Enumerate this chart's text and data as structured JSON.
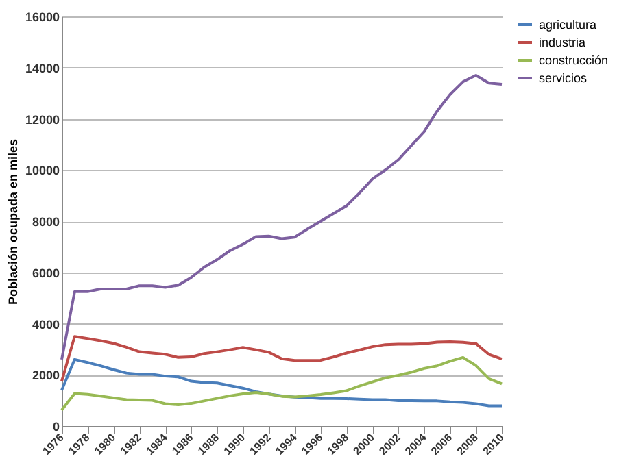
{
  "chart_data": {
    "type": "line",
    "ylabel": "Población ocupada  en miles",
    "x": [
      1976,
      1977,
      1978,
      1979,
      1980,
      1981,
      1982,
      1983,
      1984,
      1985,
      1986,
      1987,
      1988,
      1989,
      1990,
      1991,
      1992,
      1993,
      1994,
      1995,
      1996,
      1997,
      1998,
      1999,
      2000,
      2001,
      2002,
      2003,
      2004,
      2005,
      2006,
      2007,
      2008,
      2009,
      2010
    ],
    "xlim": [
      1976,
      2010
    ],
    "xticks": [
      1976,
      1978,
      1980,
      1982,
      1984,
      1986,
      1988,
      1990,
      1992,
      1994,
      1996,
      1998,
      2000,
      2002,
      2004,
      2006,
      2008,
      2010
    ],
    "ylim": [
      0,
      16000
    ],
    "yticks": [
      0,
      2000,
      4000,
      6000,
      8000,
      10000,
      12000,
      14000,
      16000
    ],
    "series": [
      {
        "name": "agricultura",
        "color": "#4a7ebb",
        "values": [
          1400,
          2600,
          2480,
          2350,
          2200,
          2070,
          2020,
          2020,
          1950,
          1920,
          1750,
          1700,
          1680,
          1580,
          1480,
          1340,
          1250,
          1180,
          1130,
          1110,
          1080,
          1080,
          1070,
          1050,
          1030,
          1030,
          990,
          990,
          980,
          980,
          940,
          920,
          870,
          790,
          790
        ]
      },
      {
        "name": "industria",
        "color": "#be4b48",
        "values": [
          1750,
          3500,
          3420,
          3330,
          3230,
          3080,
          2900,
          2850,
          2800,
          2680,
          2700,
          2830,
          2900,
          2980,
          3070,
          2980,
          2880,
          2630,
          2560,
          2560,
          2570,
          2700,
          2850,
          2970,
          3100,
          3180,
          3200,
          3200,
          3220,
          3280,
          3290,
          3270,
          3220,
          2800,
          2620
        ]
      },
      {
        "name": "construcción",
        "color": "#98b954",
        "values": [
          620,
          1270,
          1240,
          1170,
          1100,
          1030,
          1020,
          1000,
          870,
          830,
          880,
          980,
          1080,
          1180,
          1260,
          1310,
          1250,
          1160,
          1140,
          1180,
          1230,
          1300,
          1380,
          1560,
          1720,
          1880,
          1980,
          2100,
          2250,
          2350,
          2530,
          2680,
          2360,
          1850,
          1650
        ]
      },
      {
        "name": "servicios",
        "color": "#7d60a0",
        "values": [
          2600,
          5250,
          5250,
          5350,
          5350,
          5350,
          5480,
          5480,
          5420,
          5500,
          5800,
          6200,
          6500,
          6850,
          7100,
          7400,
          7420,
          7320,
          7380,
          7700,
          8000,
          8300,
          8600,
          9100,
          9650,
          10000,
          10400,
          10950,
          11500,
          12300,
          12950,
          13450,
          13700,
          13400,
          13350
        ]
      }
    ],
    "grid": "y",
    "legend": "right",
    "marker": "none",
    "line_style": "solid"
  }
}
